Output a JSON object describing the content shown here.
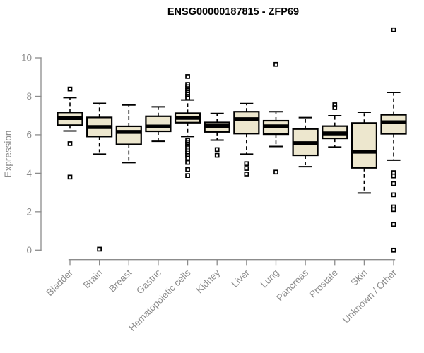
{
  "chart_data": {
    "type": "boxplot",
    "title": "ENSG00000187815 - ZFP69",
    "xlabel": "",
    "ylabel": "Expression",
    "ylim": [
      0,
      10
    ],
    "yticks": [
      0,
      2,
      4,
      6,
      8,
      10
    ],
    "grid": false,
    "legend": "none",
    "box_fill_color": "#EDE7CE",
    "line_color": "#000000",
    "axis_color": "#8C8C8C",
    "categories": [
      "Bladder",
      "Brain",
      "Breast",
      "Gastric",
      "Hematopoietic cells",
      "Kidney",
      "Liver",
      "Lung",
      "Pancreas",
      "Prostate",
      "Skin",
      "Unknown / Other"
    ],
    "series": [
      {
        "category": "Bladder",
        "whisker_low": 6.2,
        "q1": 6.5,
        "median": 6.87,
        "q3": 7.16,
        "whisker_high": 7.93,
        "outliers": [
          8.38,
          5.54,
          3.8
        ]
      },
      {
        "category": "Brain",
        "whisker_low": 4.99,
        "q1": 5.91,
        "median": 6.4,
        "q3": 6.9,
        "whisker_high": 7.63,
        "outliers": [
          0.05
        ]
      },
      {
        "category": "Breast",
        "whisker_low": 4.55,
        "q1": 5.5,
        "median": 6.15,
        "q3": 6.44,
        "whisker_high": 7.55,
        "outliers": []
      },
      {
        "category": "Gastric",
        "whisker_low": 5.66,
        "q1": 6.18,
        "median": 6.43,
        "q3": 6.96,
        "whisker_high": 7.45,
        "outliers": []
      },
      {
        "category": "Hematopoietic cells",
        "whisker_low": 5.91,
        "q1": 6.63,
        "median": 6.88,
        "q3": 7.12,
        "whisker_high": 7.81,
        "outliers": [
          9.03,
          8.62,
          8.5,
          8.4,
          8.3,
          8.2,
          8.1,
          8.0,
          7.92,
          5.72,
          5.62,
          5.52,
          5.42,
          5.32,
          5.22,
          5.12,
          5.02,
          4.92,
          4.79,
          4.56,
          4.19,
          3.88
        ]
      },
      {
        "category": "Kidney",
        "whisker_low": 5.72,
        "q1": 6.15,
        "median": 6.45,
        "q3": 6.64,
        "whisker_high": 7.11,
        "outliers": [
          5.23,
          4.93
        ]
      },
      {
        "category": "Liver",
        "whisker_low": 4.99,
        "q1": 6.06,
        "median": 6.81,
        "q3": 7.2,
        "whisker_high": 7.62,
        "outliers": [
          4.5,
          4.25,
          3.96
        ]
      },
      {
        "category": "Lung",
        "whisker_low": 5.39,
        "q1": 6.03,
        "median": 6.44,
        "q3": 6.73,
        "whisker_high": 7.2,
        "outliers": [
          9.66,
          4.06
        ]
      },
      {
        "category": "Pancreas",
        "whisker_low": 4.34,
        "q1": 4.93,
        "median": 5.56,
        "q3": 6.3,
        "whisker_high": 6.89,
        "outliers": []
      },
      {
        "category": "Prostate",
        "whisker_low": 5.36,
        "q1": 5.81,
        "median": 6.07,
        "q3": 6.45,
        "whisker_high": 6.99,
        "outliers": [
          7.56,
          7.41
        ]
      },
      {
        "category": "Skin",
        "whisker_low": 2.97,
        "q1": 4.28,
        "median": 5.12,
        "q3": 6.61,
        "whisker_high": 7.17,
        "outliers": []
      },
      {
        "category": "Unknown / Other",
        "whisker_low": 4.68,
        "q1": 6.05,
        "median": 6.65,
        "q3": 7.04,
        "whisker_high": 8.2,
        "outliers": [
          11.46,
          4.03,
          3.86,
          3.46,
          2.88,
          2.25,
          2.11,
          1.34,
          0.0
        ]
      }
    ]
  }
}
